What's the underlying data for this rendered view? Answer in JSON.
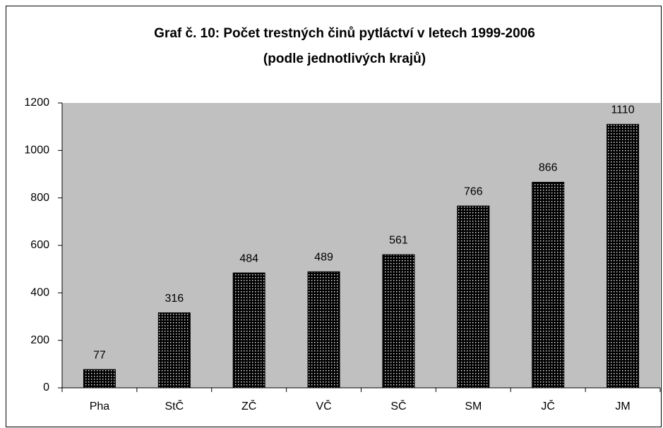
{
  "chart_data": {
    "type": "bar",
    "title": "Graf č. 10: Počet trestných činů pytláctví v letech 1999-2006",
    "subtitle": "(podle jednotlivých krajů)",
    "categories": [
      "Pha",
      "StČ",
      "ZČ",
      "VČ",
      "SČ",
      "SM",
      "JČ",
      "JM"
    ],
    "values": [
      77,
      316,
      484,
      489,
      561,
      766,
      866,
      1110
    ],
    "color": "#000000",
    "plot_background": "#c0c0c0",
    "ylim": [
      0,
      1200
    ],
    "yticks": [
      0,
      200,
      400,
      600,
      800,
      1000,
      1200
    ],
    "grid": false
  }
}
